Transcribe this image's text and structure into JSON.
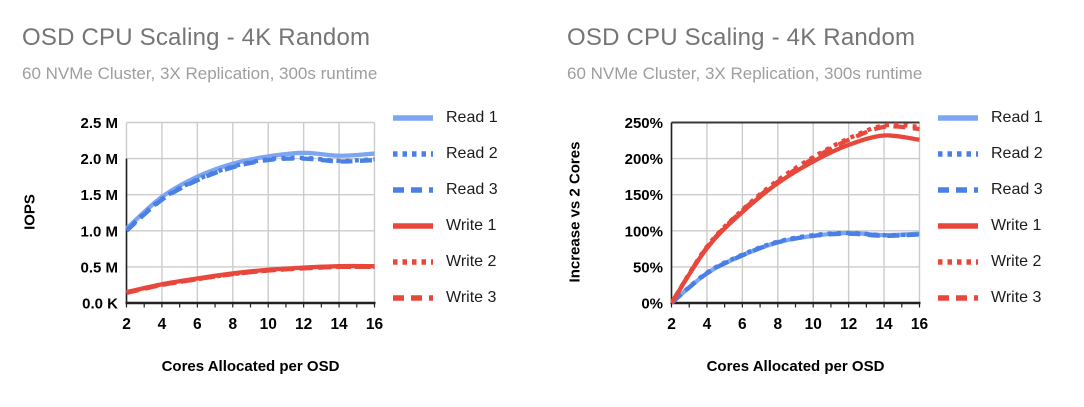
{
  "chart_data": [
    {
      "type": "line",
      "title": "OSD CPU Scaling - 4K Random",
      "subtitle": "60 NVMe Cluster, 3X Replication, 300s runtime",
      "xlabel": "Cores Allocated per OSD",
      "ylabel": "IOPS",
      "x": [
        2,
        4,
        6,
        8,
        10,
        12,
        14,
        16
      ],
      "x_tick_labels": [
        "2",
        "4",
        "6",
        "8",
        "10",
        "12",
        "14",
        "16"
      ],
      "ylim": [
        0,
        2.5
      ],
      "y_ticks": [
        {
          "value": 0,
          "label": "0.0 K"
        },
        {
          "value": 0.5,
          "label": "0.5 M"
        },
        {
          "value": 1.0,
          "label": "1.0 M"
        },
        {
          "value": 1.5,
          "label": "1.5 M"
        },
        {
          "value": 2.0,
          "label": "2.0 M"
        },
        {
          "value": 2.5,
          "label": "2.5 M"
        }
      ],
      "grid": true,
      "legend_position": "right",
      "units": "million IOPS",
      "series": [
        {
          "name": "Read 1",
          "color": "#7ca6f2",
          "style": "solid",
          "values": [
            1.03,
            1.47,
            1.75,
            1.93,
            2.03,
            2.08,
            2.04,
            2.07
          ]
        },
        {
          "name": "Read 2",
          "color": "#4a80e6",
          "style": "dotted",
          "values": [
            1.01,
            1.44,
            1.71,
            1.89,
            1.99,
            2.01,
            1.97,
            1.99
          ]
        },
        {
          "name": "Read 3",
          "color": "#4a80e6",
          "style": "dashed",
          "values": [
            1.0,
            1.43,
            1.7,
            1.88,
            1.98,
            2.0,
            1.96,
            1.98
          ]
        },
        {
          "name": "Write 1",
          "color": "#e8473c",
          "style": "solid",
          "values": [
            0.15,
            0.26,
            0.34,
            0.41,
            0.46,
            0.49,
            0.51,
            0.51
          ]
        },
        {
          "name": "Write 2",
          "color": "#e8473c",
          "style": "dotted",
          "values": [
            0.15,
            0.25,
            0.33,
            0.4,
            0.45,
            0.48,
            0.5,
            0.5
          ]
        },
        {
          "name": "Write 3",
          "color": "#e8473c",
          "style": "dashed",
          "values": [
            0.14,
            0.25,
            0.33,
            0.4,
            0.45,
            0.48,
            0.5,
            0.5
          ]
        }
      ]
    },
    {
      "type": "line",
      "title": "OSD CPU Scaling - 4K Random",
      "subtitle": "60 NVMe Cluster, 3X Replication, 300s runtime",
      "xlabel": "Cores Allocated per OSD",
      "ylabel": "Increase vs 2 Cores",
      "x": [
        2,
        4,
        6,
        8,
        10,
        12,
        14,
        16
      ],
      "x_tick_labels": [
        "2",
        "4",
        "6",
        "8",
        "10",
        "12",
        "14",
        "16"
      ],
      "ylim": [
        0,
        250
      ],
      "y_ticks": [
        {
          "value": 0,
          "label": "0%"
        },
        {
          "value": 50,
          "label": "50%"
        },
        {
          "value": 100,
          "label": "100%"
        },
        {
          "value": 150,
          "label": "150%"
        },
        {
          "value": 200,
          "label": "200%"
        },
        {
          "value": 250,
          "label": "250%"
        }
      ],
      "grid": true,
      "legend_position": "right",
      "units": "percent increase vs 2 cores",
      "series": [
        {
          "name": "Read 1",
          "color": "#7ca6f2",
          "style": "solid",
          "values": [
            0,
            41,
            66,
            84,
            93,
            97,
            94,
            96
          ]
        },
        {
          "name": "Read 2",
          "color": "#4a80e6",
          "style": "dotted",
          "values": [
            0,
            42,
            67,
            85,
            94,
            97,
            94,
            95
          ]
        },
        {
          "name": "Read 3",
          "color": "#4a80e6",
          "style": "dashed",
          "values": [
            0,
            41,
            66,
            84,
            93,
            96,
            93,
            95
          ]
        },
        {
          "name": "Write 1",
          "color": "#e8473c",
          "style": "solid",
          "values": [
            0,
            76,
            126,
            166,
            196,
            219,
            232,
            226
          ]
        },
        {
          "name": "Write 2",
          "color": "#e8473c",
          "style": "dotted",
          "values": [
            0,
            78,
            129,
            170,
            202,
            228,
            246,
            244
          ]
        },
        {
          "name": "Write 3",
          "color": "#e8473c",
          "style": "dashed",
          "values": [
            0,
            77,
            128,
            168,
            200,
            226,
            244,
            241
          ]
        }
      ]
    }
  ],
  "style_colors": {
    "title_gray": "#757575",
    "subtitle_gray": "#9e9e9e",
    "gridline_gray": "#cccccc",
    "axis_black": "#212121",
    "read_light_blue": "#7ca6f2",
    "read_blue": "#4a80e6",
    "write_red": "#e8473c"
  }
}
